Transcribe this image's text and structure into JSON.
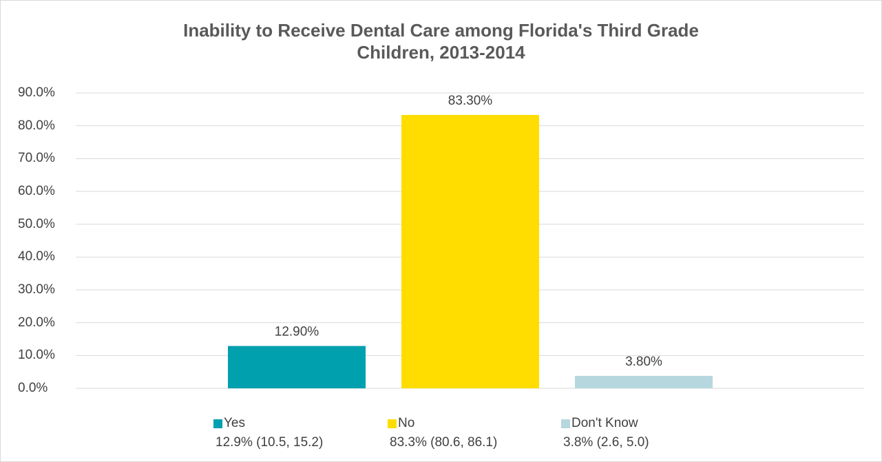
{
  "chart_data": {
    "type": "bar",
    "title_lines": [
      "Inability to Receive Dental Care among Florida's Third Grade",
      "Children, 2013-2014"
    ],
    "categories": [
      "Yes",
      "No",
      "Don't Know"
    ],
    "values": [
      12.9,
      83.3,
      3.8
    ],
    "data_labels": [
      "12.90%",
      "83.30%",
      "3.80%"
    ],
    "colors": [
      "#00A0AE",
      "#FFDD00",
      "#B7D7DE"
    ],
    "ylim": [
      0,
      90
    ],
    "yticks": [
      0,
      10,
      20,
      30,
      40,
      50,
      60,
      70,
      80,
      90
    ],
    "ytick_labels": [
      "0.0%",
      "10.0%",
      "20.0%",
      "30.0%",
      "40.0%",
      "50.0%",
      "60.0%",
      "70.0%",
      "80.0%",
      "90.0%"
    ],
    "grid": true,
    "legend": {
      "position": "bottom",
      "entries": [
        {
          "name": "Yes",
          "ci": "12.9% (10.5, 15.2)"
        },
        {
          "name": "No",
          "ci": "83.3% (80.6, 86.1)"
        },
        {
          "name": "Don't Know",
          "ci": "3.8% (2.6, 5.0)"
        }
      ]
    }
  }
}
